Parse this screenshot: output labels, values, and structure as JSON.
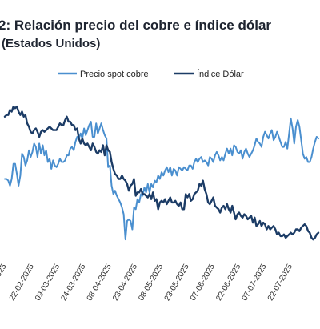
{
  "chart_data": {
    "type": "line",
    "title": "2: Relación precio del cobre e índice dólar",
    "subtitle": "(Estados Unidos)",
    "legend_position": "top",
    "grid": false,
    "x_tick_labels": [
      "2025",
      "22-02-2025",
      "09-03-2025",
      "24-03-2025",
      "08-04-2025",
      "23-04-2025",
      "08-05-2025",
      "23-05-2025",
      "07-06-2025",
      "22-06-2025",
      "07-07-2025",
      "22-07-2025"
    ],
    "x": [
      0,
      1,
      2,
      3,
      4,
      5,
      6,
      7,
      8,
      9,
      10,
      11,
      12,
      13,
      14,
      15,
      16,
      17,
      18,
      19,
      20,
      21,
      22,
      23,
      24,
      25,
      26,
      27,
      28,
      29,
      30,
      31,
      32,
      33,
      34,
      35,
      36,
      37,
      38,
      39,
      40,
      41,
      42,
      43,
      44,
      45,
      46,
      47,
      48,
      49,
      50,
      51,
      52,
      53,
      54,
      55,
      56,
      57,
      58,
      59,
      60,
      61,
      62,
      63,
      64,
      65,
      66,
      67,
      68,
      69,
      70,
      71,
      72,
      73,
      74,
      75,
      76,
      77,
      78,
      79,
      80,
      81,
      82,
      83,
      84,
      85,
      86,
      87,
      88,
      89,
      90,
      91,
      92,
      93,
      94,
      95,
      96,
      97,
      98,
      99,
      100,
      101,
      102,
      103,
      104,
      105,
      106,
      107,
      108,
      109,
      110,
      111,
      112,
      113,
      114,
      115,
      116,
      117,
      118,
      119,
      120,
      121,
      122,
      123,
      124,
      125,
      126,
      127,
      128,
      129,
      130,
      131,
      132,
      133,
      134,
      135,
      136,
      137,
      138,
      139,
      140,
      141,
      142,
      143,
      144,
      145,
      146,
      147,
      148,
      149,
      150,
      151,
      152,
      153,
      154,
      155,
      156,
      157,
      158,
      159,
      160,
      161,
      162,
      163,
      164,
      165,
      166,
      167,
      168,
      169,
      170,
      171,
      172,
      173,
      174,
      175,
      176,
      177,
      178,
      179,
      180,
      181,
      182
    ],
    "series": [
      {
        "name": "Precio spot cobre",
        "color": "#4a8fcf",
        "values": [
          45,
          45,
          44,
          41,
          45,
          54,
          54,
          48,
          41,
          47,
          60,
          58,
          53,
          56,
          62,
          58,
          61,
          66,
          64,
          58,
          66,
          60,
          65,
          59,
          62,
          55,
          57,
          51,
          56,
          53,
          52,
          54,
          57,
          55,
          55,
          56,
          59,
          59,
          63,
          64,
          62,
          67,
          70,
          69,
          72,
          69,
          75,
          71,
          74,
          77,
          79,
          70,
          70,
          78,
          72,
          75,
          78,
          74,
          71,
          69,
          52,
          53,
          41,
          36,
          38,
          35,
          33,
          31,
          28,
          24,
          9,
          20,
          21,
          20,
          15,
          28,
          27,
          33,
          31,
          36,
          35,
          40,
          37,
          42,
          37,
          42,
          40,
          44,
          43,
          47,
          45,
          49,
          47,
          50,
          52,
          49,
          52,
          47,
          51,
          50,
          47,
          52,
          51,
          50,
          52,
          51,
          50,
          53,
          53,
          51,
          55,
          57,
          55,
          57,
          58,
          55,
          56,
          55,
          53,
          58,
          57,
          55,
          59,
          61,
          59,
          56,
          58,
          56,
          60,
          63,
          60,
          63,
          59,
          65,
          64,
          61,
          60,
          62,
          57,
          61,
          63,
          60,
          58,
          60,
          62,
          65,
          69,
          67,
          66,
          64,
          70,
          73,
          71,
          69,
          72,
          74,
          68,
          70,
          73,
          70,
          67,
          64,
          64,
          67,
          63,
          72,
          81,
          75,
          66,
          76,
          80,
          76,
          68,
          60,
          57,
          58,
          55,
          55,
          58,
          63,
          67,
          70,
          69
        ]
      },
      {
        "name": "Índice Dólar",
        "color": "#1c3c66",
        "values": [
          82,
          83,
          83,
          86,
          85,
          88,
          87,
          88,
          85,
          83,
          85,
          82,
          83,
          78,
          76,
          73,
          72,
          74,
          75,
          73,
          70,
          73,
          74,
          73,
          74,
          75,
          76,
          75,
          74,
          74,
          74,
          76,
          78,
          77,
          77,
          80,
          82,
          79,
          79,
          77,
          77,
          74,
          75,
          69,
          66,
          69,
          66,
          65,
          66,
          64,
          62,
          66,
          64,
          61,
          60,
          62,
          61,
          65,
          59,
          65,
          62,
          61,
          55,
          51,
          48,
          47,
          45,
          45,
          47,
          45,
          44,
          42,
          38,
          41,
          42,
          45,
          35,
          37,
          37,
          39,
          36,
          36,
          35,
          34,
          36,
          33,
          37,
          32,
          33,
          27,
          31,
          32,
          31,
          33,
          30,
          32,
          34,
          31,
          31,
          32,
          30,
          29,
          31,
          27,
          27,
          36,
          34,
          36,
          32,
          33,
          36,
          37,
          38,
          42,
          41,
          44,
          39,
          36,
          31,
          30,
          32,
          34,
          29,
          28,
          27,
          25,
          28,
          29,
          27,
          30,
          27,
          25,
          29,
          25,
          21,
          24,
          25,
          23,
          22,
          24,
          23,
          21,
          22,
          23,
          19,
          22,
          17,
          18,
          20,
          17,
          19,
          18,
          15,
          17,
          15,
          16,
          17,
          15,
          12,
          13,
          11,
          11,
          12,
          10,
          11,
          12,
          13,
          12,
          13,
          15,
          15,
          14,
          16,
          17,
          18,
          17,
          14,
          13,
          10,
          9,
          10,
          12,
          13
        ]
      }
    ]
  }
}
